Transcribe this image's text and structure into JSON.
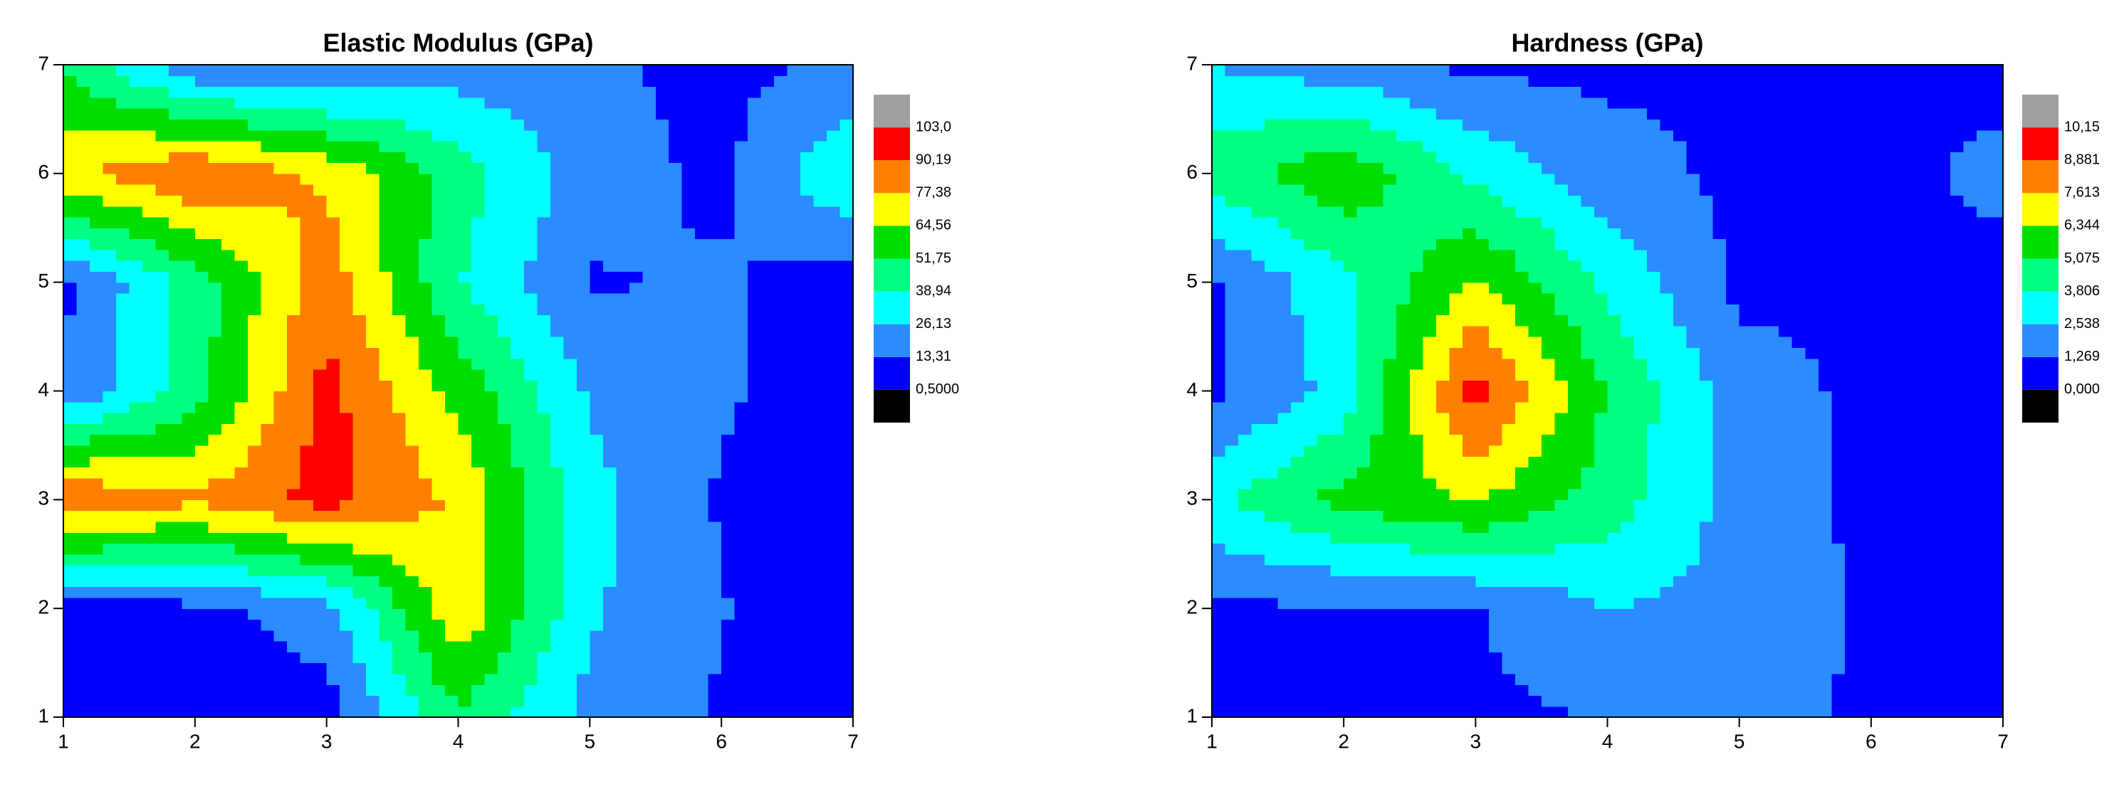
{
  "chart_data": [
    {
      "type": "contour",
      "title": "Elastic Modulus (GPa)",
      "x": [
        1,
        2,
        3,
        4,
        5,
        6,
        7
      ],
      "y": [
        1,
        2,
        3,
        4,
        5,
        6,
        7
      ],
      "z": [
        [
          5,
          5,
          8,
          50,
          22,
          12,
          8
        ],
        [
          8,
          10,
          20,
          75,
          28,
          14,
          5
        ],
        [
          90,
          80,
          95,
          75,
          30,
          12,
          5
        ],
        [
          15,
          45,
          95,
          60,
          25,
          15,
          5
        ],
        [
          10,
          45,
          85,
          40,
          12,
          15,
          5
        ],
        [
          75,
          90,
          75,
          45,
          20,
          10,
          40
        ],
        [
          50,
          15,
          10,
          20,
          15,
          10,
          15
        ]
      ],
      "xlim": [
        1,
        7
      ],
      "ylim": [
        1,
        7
      ],
      "xticks": [
        1,
        2,
        3,
        4,
        5,
        6,
        7
      ],
      "yticks": [
        1,
        2,
        3,
        4,
        5,
        6,
        7
      ],
      "levels": [
        {
          "value": 0.5,
          "label": "0,5000"
        },
        {
          "value": 13.31,
          "label": "13,31"
        },
        {
          "value": 26.13,
          "label": "26,13"
        },
        {
          "value": 38.94,
          "label": "38,94"
        },
        {
          "value": 51.75,
          "label": "51,75"
        },
        {
          "value": 64.56,
          "label": "64,56"
        },
        {
          "value": 77.38,
          "label": "77,38"
        },
        {
          "value": 90.19,
          "label": "90,19"
        },
        {
          "value": 103.0,
          "label": "103,0"
        }
      ],
      "colors": [
        "#000000",
        "#0000ff",
        "#2a8cff",
        "#00ffff",
        "#00ff80",
        "#00dd00",
        "#ffff00",
        "#ff8000",
        "#ff0000",
        "#a0a0a0"
      ]
    },
    {
      "type": "contour",
      "title": "Hardness (GPa)",
      "x": [
        1,
        2,
        3,
        4,
        5,
        6,
        7
      ],
      "y": [
        1,
        2,
        3,
        4,
        5,
        6,
        7
      ],
      "z": [
        [
          1.0,
          1.0,
          1.0,
          1.3,
          2.0,
          1.0,
          1.0
        ],
        [
          1.1,
          1.1,
          1.2,
          2.5,
          2.2,
          1.0,
          1.0
        ],
        [
          3.5,
          5.5,
          6.5,
          4.5,
          2.0,
          1.0,
          1.0
        ],
        [
          1.0,
          3.0,
          9.5,
          5.0,
          1.8,
          1.0,
          1.0
        ],
        [
          1.0,
          3.5,
          6.5,
          3.5,
          1.0,
          1.0,
          1.0
        ],
        [
          4.5,
          6.0,
          3.5,
          1.8,
          1.0,
          1.0,
          1.5
        ],
        [
          2.5,
          1.8,
          1.0,
          1.0,
          1.0,
          1.0,
          1.0
        ]
      ],
      "xlim": [
        1,
        7
      ],
      "ylim": [
        1,
        7
      ],
      "xticks": [
        1,
        2,
        3,
        4,
        5,
        6,
        7
      ],
      "yticks": [
        1,
        2,
        3,
        4,
        5,
        6,
        7
      ],
      "levels": [
        {
          "value": 0,
          "label": "0,000"
        },
        {
          "value": 1.269,
          "label": "1,269"
        },
        {
          "value": 2.538,
          "label": "2,538"
        },
        {
          "value": 3.806,
          "label": "3,806"
        },
        {
          "value": 5.075,
          "label": "5,075"
        },
        {
          "value": 6.344,
          "label": "6,344"
        },
        {
          "value": 7.613,
          "label": "7,613"
        },
        {
          "value": 8.881,
          "label": "8,881"
        },
        {
          "value": 10.15,
          "label": "10,15"
        }
      ],
      "colors": [
        "#000000",
        "#0000ff",
        "#2a8cff",
        "#00ffff",
        "#00ff80",
        "#00dd00",
        "#ffff00",
        "#ff8000",
        "#ff0000",
        "#a0a0a0"
      ]
    }
  ]
}
